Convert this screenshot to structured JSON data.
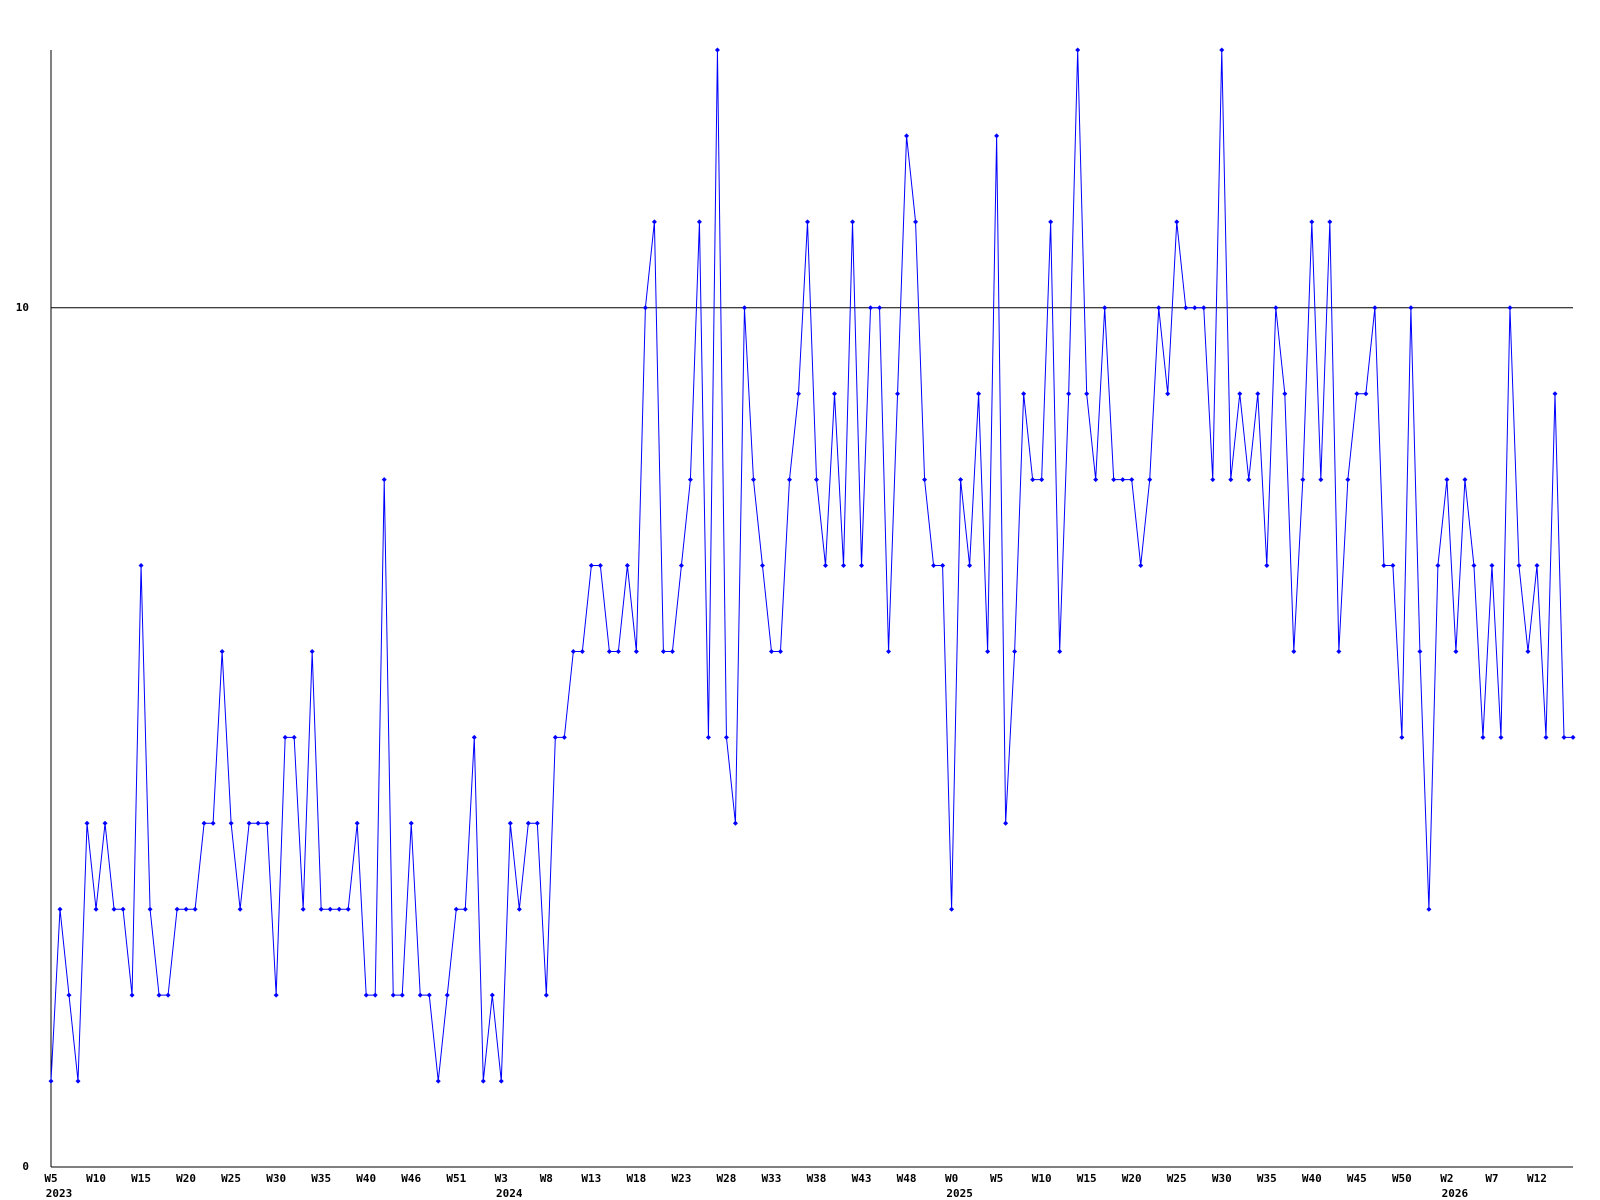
{
  "chart_data": {
    "type": "line",
    "categories": [
      "W5",
      null,
      null,
      null,
      null,
      "W10",
      null,
      null,
      null,
      null,
      "W15",
      null,
      null,
      null,
      null,
      "W20",
      null,
      null,
      null,
      null,
      "W25",
      null,
      null,
      null,
      null,
      "W30",
      null,
      null,
      null,
      null,
      "W35",
      null,
      null,
      null,
      null,
      "W40",
      null,
      null,
      null,
      null,
      "W46",
      null,
      null,
      null,
      null,
      "W51",
      null,
      null,
      null,
      null,
      "W3",
      null,
      null,
      null,
      null,
      "W8",
      null,
      null,
      null,
      null,
      "W13",
      null,
      null,
      null,
      null,
      "W18",
      null,
      null,
      null,
      null,
      "W23",
      null,
      null,
      null,
      null,
      "W28",
      null,
      null,
      null,
      null,
      "W33",
      null,
      null,
      null,
      null,
      "W38",
      null,
      null,
      null,
      null,
      "W43",
      null,
      null,
      null,
      null,
      "W48",
      null,
      null,
      null,
      null,
      "W0",
      null,
      null,
      null,
      null,
      "W5",
      null,
      null,
      null,
      null,
      "W10",
      null,
      null,
      null,
      null,
      "W15",
      null,
      null,
      null,
      null,
      "W20",
      null,
      null,
      null,
      null,
      "W25",
      null,
      null,
      null,
      null,
      "W30",
      null,
      null,
      null,
      null,
      "W35",
      null,
      null,
      null,
      null,
      "W40",
      null,
      null,
      null,
      null,
      "W45",
      null,
      null,
      null,
      null,
      "W50",
      null,
      null,
      null,
      null,
      "W2",
      null,
      null,
      null,
      null,
      "W7",
      null,
      null,
      null,
      null,
      "W12",
      null,
      null,
      null,
      null
    ],
    "year_labels": [
      "2023",
      null,
      null,
      null,
      null,
      null,
      null,
      null,
      null,
      null,
      null,
      null,
      null,
      null,
      null,
      null,
      null,
      null,
      null,
      null,
      null,
      null,
      null,
      null,
      null,
      null,
      null,
      null,
      null,
      null,
      null,
      null,
      null,
      null,
      null,
      null,
      null,
      null,
      null,
      null,
      null,
      null,
      null,
      null,
      null,
      null,
      null,
      null,
      null,
      null,
      "2024",
      null,
      null,
      null,
      null,
      null,
      null,
      null,
      null,
      null,
      null,
      null,
      null,
      null,
      null,
      null,
      null,
      null,
      null,
      null,
      null,
      null,
      null,
      null,
      null,
      null,
      null,
      null,
      null,
      null,
      null,
      null,
      null,
      null,
      null,
      null,
      null,
      null,
      null,
      null,
      null,
      null,
      null,
      null,
      null,
      null,
      null,
      null,
      null,
      null,
      "2025",
      null,
      null,
      null,
      null,
      null,
      null,
      null,
      null,
      null,
      null,
      null,
      null,
      null,
      null,
      null,
      null,
      null,
      null,
      null,
      null,
      null,
      null,
      null,
      null,
      null,
      null,
      null,
      null,
      null,
      null,
      null,
      null,
      null,
      null,
      null,
      null,
      null,
      null,
      null,
      null,
      null,
      null,
      null,
      null,
      null,
      null,
      null,
      null,
      null,
      null,
      null,
      null,
      null,
      null,
      "2026",
      null,
      null,
      null,
      null,
      null,
      null,
      null,
      null,
      null,
      null,
      null,
      null,
      null,
      null
    ],
    "values": [
      1,
      3,
      2,
      1,
      4,
      3,
      4,
      3,
      3,
      2,
      7,
      3,
      2,
      2,
      3,
      3,
      3,
      4,
      4,
      6,
      4,
      3,
      4,
      4,
      4,
      2,
      5,
      5,
      3,
      6,
      3,
      3,
      3,
      3,
      4,
      2,
      2,
      8,
      2,
      2,
      4,
      2,
      2,
      1,
      2,
      3,
      3,
      5,
      1,
      2,
      1,
      4,
      3,
      4,
      4,
      2,
      5,
      5,
      6,
      6,
      7,
      7,
      6,
      6,
      7,
      6,
      10,
      11,
      6,
      6,
      7,
      8,
      11,
      5,
      13,
      5,
      4,
      10,
      8,
      7,
      6,
      6,
      8,
      9,
      11,
      8,
      7,
      9,
      7,
      11,
      7,
      10,
      10,
      6,
      9,
      12,
      11,
      8,
      7,
      7,
      3,
      8,
      7,
      9,
      6,
      12,
      4,
      6,
      9,
      8,
      8,
      11,
      6,
      9,
      13,
      9,
      8,
      10,
      8,
      8,
      8,
      7,
      8,
      10,
      9,
      11,
      10,
      10,
      10,
      8,
      13,
      8,
      9,
      8,
      9,
      7,
      10,
      9,
      6,
      8,
      11,
      8,
      11,
      6,
      8,
      9,
      9,
      10,
      7,
      7,
      5,
      10,
      6,
      3,
      7,
      8,
      6,
      8,
      7,
      5,
      7,
      5,
      10,
      7,
      6,
      7,
      5,
      9,
      5,
      5
    ],
    "color": "#0000ff",
    "ylim": [
      0,
      13
    ],
    "yticks": [
      0,
      10
    ],
    "grid": true
  }
}
